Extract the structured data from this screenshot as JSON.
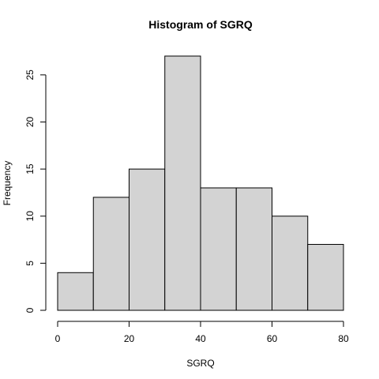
{
  "chart_data": {
    "type": "bar",
    "subtype": "histogram",
    "title": "Histogram of  SGRQ",
    "xlabel": "SGRQ",
    "ylabel": "Frequency",
    "bins": [
      {
        "start": 0,
        "end": 10,
        "count": 4
      },
      {
        "start": 10,
        "end": 20,
        "count": 12
      },
      {
        "start": 20,
        "end": 30,
        "count": 15
      },
      {
        "start": 30,
        "end": 40,
        "count": 27
      },
      {
        "start": 40,
        "end": 50,
        "count": 13
      },
      {
        "start": 50,
        "end": 60,
        "count": 13
      },
      {
        "start": 60,
        "end": 70,
        "count": 10
      },
      {
        "start": 70,
        "end": 80,
        "count": 7
      }
    ],
    "x_ticks": [
      0,
      20,
      40,
      60,
      80
    ],
    "y_ticks": [
      0,
      5,
      10,
      15,
      20,
      25
    ],
    "xlim": [
      0,
      80
    ],
    "ylim": [
      0,
      27
    ],
    "bar_color": "#d3d3d3",
    "grid": false
  }
}
